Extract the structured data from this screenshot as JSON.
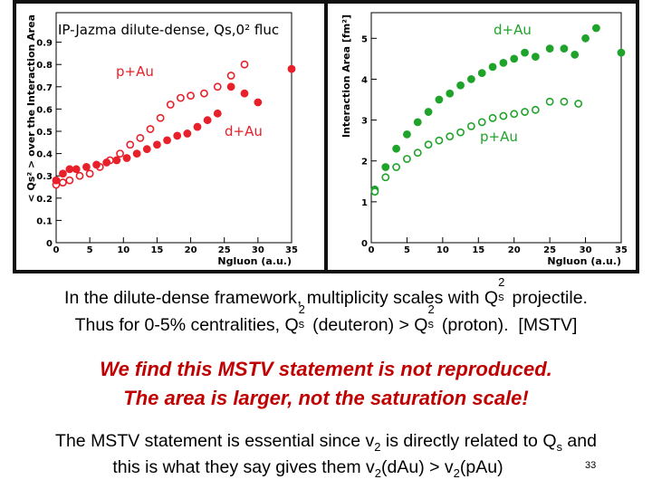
{
  "chart_data": [
    {
      "type": "scatter",
      "title": "IP-Jazma dilute-dense, Qs,0²  fluc",
      "x_label": "Ngluon (a.u.)",
      "y_label": "< Qs² > over the Interaction Area",
      "xlim": [
        0,
        35
      ],
      "ylim": [
        0,
        1
      ],
      "xticks": [
        0,
        5,
        10,
        15,
        20,
        25,
        30,
        35
      ],
      "yticks": [
        0,
        0.1,
        0.2,
        0.3,
        0.4,
        0.5,
        0.6,
        0.7,
        0.8,
        0.9
      ],
      "annotations": [
        "p+Au",
        "d+Au"
      ],
      "annotation_color": "#e8202a",
      "series": [
        {
          "name": "p+Au",
          "color": "#e8202a",
          "marker": "open",
          "x": [
            0,
            1,
            2,
            3.5,
            5,
            6.5,
            8,
            9.5,
            11,
            12.5,
            14,
            15.5,
            17,
            18.5,
            20,
            22,
            24,
            26,
            28
          ],
          "values": [
            0.26,
            0.27,
            0.28,
            0.3,
            0.31,
            0.34,
            0.37,
            0.4,
            0.44,
            0.47,
            0.51,
            0.56,
            0.62,
            0.65,
            0.66,
            0.67,
            0.7,
            0.75,
            0.8
          ]
        },
        {
          "name": "d+Au",
          "color": "#e8202a",
          "marker": "filled",
          "x": [
            0,
            1,
            2,
            3,
            4.5,
            6,
            7.5,
            9,
            10.5,
            12,
            13.5,
            15,
            16.5,
            18,
            19.5,
            21,
            22.5,
            24,
            26,
            28,
            30,
            35
          ],
          "values": [
            0.28,
            0.31,
            0.33,
            0.33,
            0.34,
            0.35,
            0.36,
            0.37,
            0.38,
            0.4,
            0.42,
            0.44,
            0.46,
            0.48,
            0.49,
            0.52,
            0.55,
            0.58,
            0.7,
            0.67,
            0.63,
            0.78
          ]
        }
      ]
    },
    {
      "type": "scatter",
      "x_label": "Ngluon (a.u.)",
      "y_label": "Interaction Area [fm²]",
      "xlim": [
        0,
        35
      ],
      "ylim": [
        0,
        5.45
      ],
      "xticks": [
        0,
        5,
        10,
        15,
        20,
        25,
        30,
        35
      ],
      "yticks": [
        0,
        1,
        2,
        3,
        4,
        5
      ],
      "annotations": [
        "d+Au",
        "p+Au"
      ],
      "annotation_color": "#1fa32a",
      "series": [
        {
          "name": "d+Au",
          "color": "#1fa32a",
          "marker": "filled",
          "x": [
            0.5,
            2,
            3.5,
            5,
            6.5,
            8,
            9.5,
            11,
            12.5,
            14,
            15.5,
            17,
            18.5,
            20,
            21.5,
            23,
            25,
            27,
            28.5,
            30,
            31.5,
            35
          ],
          "values": [
            1.3,
            1.85,
            2.3,
            2.65,
            2.95,
            3.2,
            3.5,
            3.65,
            3.85,
            4.0,
            4.15,
            4.3,
            4.4,
            4.5,
            4.65,
            4.55,
            4.75,
            4.75,
            4.6,
            5.0,
            5.25,
            4.65
          ]
        },
        {
          "name": "p+Au",
          "color": "#1fa32a",
          "marker": "open",
          "x": [
            0.5,
            2,
            3.5,
            5,
            6.5,
            8,
            9.5,
            11,
            12.5,
            14,
            15.5,
            17,
            18.5,
            20,
            21.5,
            23,
            25,
            27,
            29
          ],
          "values": [
            1.25,
            1.6,
            1.85,
            2.05,
            2.2,
            2.4,
            2.5,
            2.6,
            2.7,
            2.85,
            2.95,
            3.05,
            3.1,
            3.15,
            3.2,
            3.25,
            3.45,
            3.45,
            3.4
          ]
        }
      ]
    }
  ],
  "caption": {
    "line1": [
      "In the dilute-dense framework, multiplicity scales with Q",
      "s",
      "2",
      " projectile."
    ],
    "line2": [
      "Thus for 0-5% centralities, Q",
      "s",
      "2",
      " (deuteron) > Q",
      "s",
      "2",
      " (proton).  [MSTV]"
    ]
  },
  "emphasis": [
    "We find this MSTV statement is not reproduced.",
    "The area is larger, not the saturation scale!"
  ],
  "conclusion": {
    "line1": [
      "The MSTV statement is essential since v",
      "2",
      " is directly related to Q",
      "s",
      " and"
    ],
    "line2": [
      "this is what they say gives them v",
      "2",
      "(dAu) > v",
      "2",
      "(pAu)"
    ]
  },
  "page_number": 33
}
